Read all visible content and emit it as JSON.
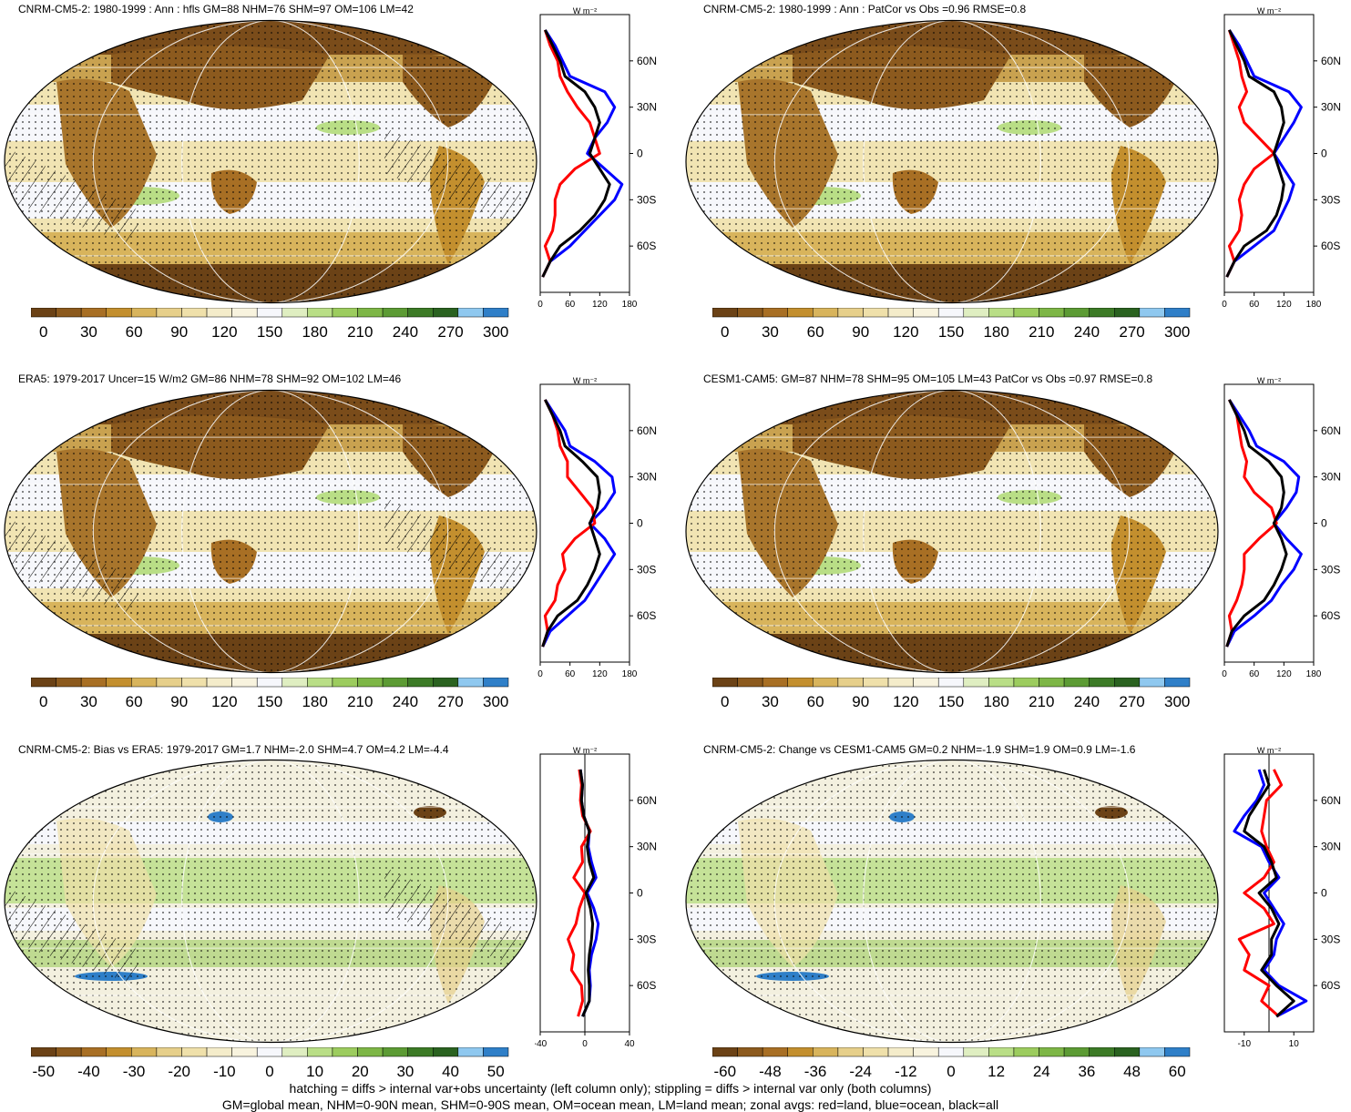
{
  "colors": {
    "abs_scale": [
      "#6b4216",
      "#8c5a1e",
      "#a86f24",
      "#c38f2e",
      "#d8b45c",
      "#e6cf8a",
      "#efe0aa",
      "#f4ecca",
      "#f8f3de",
      "#f6f7fb",
      "#dfeec1",
      "#b9de86",
      "#9ccc5e",
      "#7db646",
      "#5c9b34",
      "#3c7a26",
      "#2a6220",
      "#8fc8ef",
      "#2f7fc8"
    ],
    "diff_scale": [
      "#6b4216",
      "#8c5a1e",
      "#a86f24",
      "#c38f2e",
      "#d8b45c",
      "#e6cf8a",
      "#efe0aa",
      "#f4ecca",
      "#f8f3de",
      "#f6f7fb",
      "#dfeec1",
      "#b9de86",
      "#9ccc5e",
      "#7db646",
      "#5c9b34",
      "#3c7a26",
      "#2a6220",
      "#8fc8ef",
      "#2f7fc8"
    ],
    "land": "#ff0000",
    "ocean": "#0000ff",
    "all": "#000000"
  },
  "panels": [
    {
      "title": "CNRM-CM5-2: 1980-1999 : Ann : hfls GM=88 NHM=76 SHM=97 OM=106 LM=42",
      "map_type": "abs",
      "hatching": true,
      "colorbar_labels": [
        "0",
        "30",
        "60",
        "90",
        "120",
        "150",
        "180",
        "210",
        "240",
        "270",
        "300"
      ],
      "zonal": {
        "unit": "W m⁻²",
        "xlim": [
          0,
          180
        ],
        "xticks": [
          "0",
          "60",
          "120",
          "180"
        ],
        "lat_labels": [
          "60N",
          "30N",
          "0",
          "30S",
          "60S"
        ],
        "zero_line": false,
        "lat": [
          80,
          70,
          60,
          50,
          40,
          30,
          20,
          10,
          0,
          -10,
          -20,
          -30,
          -40,
          -50,
          -60,
          -70,
          -80
        ],
        "land": [
          10,
          20,
          35,
          40,
          55,
          75,
          100,
          110,
          120,
          70,
          40,
          30,
          30,
          25,
          10,
          20,
          5
        ],
        "ocean": [
          10,
          30,
          45,
          60,
          130,
          150,
          135,
          110,
          95,
          130,
          165,
          150,
          120,
          90,
          60,
          20,
          5
        ],
        "all": [
          10,
          25,
          40,
          50,
          90,
          110,
          120,
          110,
          100,
          120,
          140,
          130,
          110,
          80,
          40,
          20,
          5
        ]
      }
    },
    {
      "title": "CNRM-CM5-2: 1980-1999 : Ann : PatCor vs Obs =0.96 RMSE=0.8",
      "map_type": "abs",
      "hatching": false,
      "colorbar_labels": [
        "0",
        "30",
        "60",
        "90",
        "120",
        "150",
        "180",
        "210",
        "240",
        "270",
        "300"
      ],
      "zonal": {
        "unit": "W m⁻²",
        "xlim": [
          0,
          180
        ],
        "xticks": [
          "0",
          "60",
          "120",
          "180"
        ],
        "lat_labels": [
          "60N",
          "30N",
          "0",
          "30S",
          "60S"
        ],
        "zero_line": false,
        "lat": [
          80,
          70,
          60,
          50,
          40,
          30,
          20,
          10,
          0,
          -10,
          -20,
          -30,
          -40,
          -50,
          -60,
          -70,
          -80
        ],
        "land": [
          10,
          20,
          30,
          35,
          45,
          30,
          40,
          70,
          100,
          60,
          40,
          30,
          35,
          30,
          10,
          20,
          5
        ],
        "ocean": [
          10,
          30,
          45,
          60,
          130,
          155,
          140,
          120,
          100,
          120,
          140,
          130,
          115,
          100,
          60,
          20,
          5
        ],
        "all": [
          10,
          25,
          40,
          50,
          100,
          115,
          120,
          110,
          100,
          110,
          120,
          115,
          105,
          85,
          40,
          20,
          5
        ]
      }
    },
    {
      "title": "ERA5: 1979-2017 Uncer=15 W/m2 GM=86 NHM=78 SHM=92 OM=102 LM=46",
      "map_type": "abs",
      "hatching": true,
      "colorbar_labels": [
        "0",
        "30",
        "60",
        "90",
        "120",
        "150",
        "180",
        "210",
        "240",
        "270",
        "300"
      ],
      "zonal": {
        "unit": "W m⁻²",
        "xlim": [
          0,
          180
        ],
        "xticks": [
          "0",
          "60",
          "120",
          "180"
        ],
        "lat_labels": [
          "60N",
          "30N",
          "0",
          "30S",
          "60S"
        ],
        "zero_line": false,
        "lat": [
          80,
          70,
          60,
          50,
          40,
          30,
          20,
          10,
          0,
          -10,
          -20,
          -30,
          -40,
          -50,
          -60,
          -70,
          -80
        ],
        "land": [
          10,
          25,
          35,
          40,
          55,
          55,
          80,
          105,
          110,
          70,
          45,
          50,
          35,
          30,
          10,
          15,
          5
        ],
        "ocean": [
          10,
          30,
          50,
          60,
          110,
          145,
          150,
          130,
          100,
          130,
          150,
          130,
          110,
          90,
          55,
          20,
          5
        ],
        "all": [
          10,
          25,
          40,
          50,
          85,
          115,
          120,
          115,
          100,
          110,
          120,
          110,
          95,
          75,
          35,
          15,
          5
        ]
      }
    },
    {
      "title": "CESM1-CAM5: GM=87 NHM=78 SHM=95 OM=105 LM=43 PatCor vs Obs =0.97 RMSE=0.8",
      "map_type": "abs",
      "hatching": false,
      "colorbar_labels": [
        "0",
        "30",
        "60",
        "90",
        "120",
        "150",
        "180",
        "210",
        "240",
        "270",
        "300"
      ],
      "zonal": {
        "unit": "W m⁻²",
        "xlim": [
          0,
          180
        ],
        "xticks": [
          "0",
          "60",
          "120",
          "180"
        ],
        "lat_labels": [
          "60N",
          "30N",
          "0",
          "30S",
          "60S"
        ],
        "zero_line": false,
        "lat": [
          80,
          70,
          60,
          50,
          40,
          30,
          20,
          10,
          0,
          -10,
          -20,
          -30,
          -40,
          -50,
          -60,
          -70,
          -80
        ],
        "land": [
          10,
          25,
          30,
          35,
          45,
          40,
          60,
          95,
          105,
          70,
          40,
          40,
          35,
          25,
          10,
          15,
          5
        ],
        "ocean": [
          10,
          30,
          50,
          65,
          120,
          150,
          145,
          125,
          100,
          125,
          155,
          140,
          115,
          95,
          60,
          20,
          5
        ],
        "all": [
          10,
          25,
          40,
          50,
          90,
          115,
          120,
          115,
          100,
          115,
          125,
          115,
          100,
          80,
          40,
          15,
          5
        ]
      }
    },
    {
      "title": "CNRM-CM5-2: Bias vs ERA5: 1979-2017 GM=1.7 NHM=-2.0 SHM=4.7 OM=4.2 LM=-4.4",
      "map_type": "diff",
      "hatching": true,
      "colorbar_labels": [
        "-50",
        "-40",
        "-30",
        "-20",
        "-10",
        "0",
        "10",
        "20",
        "30",
        "40",
        "50"
      ],
      "zonal": {
        "unit": "W m⁻²",
        "xlim": [
          -40,
          40
        ],
        "xticks": [
          "-40",
          "0",
          "40"
        ],
        "lat_labels": [
          "60N",
          "30N",
          "0",
          "30S",
          "60S"
        ],
        "zero_line": true,
        "lat": [
          80,
          70,
          60,
          50,
          40,
          30,
          20,
          10,
          0,
          -10,
          -20,
          -30,
          -40,
          -50,
          -60,
          -70,
          -80
        ],
        "land": [
          -5,
          -3,
          -4,
          -2,
          5,
          -3,
          -2,
          -10,
          0,
          -5,
          -8,
          -15,
          -10,
          -12,
          -3,
          -2,
          -6
        ],
        "ocean": [
          -4,
          -2,
          -3,
          -1,
          4,
          3,
          6,
          10,
          2,
          8,
          12,
          10,
          6,
          4,
          5,
          4,
          -2
        ],
        "all": [
          -4,
          -2,
          -3,
          -1,
          4,
          2,
          4,
          8,
          1,
          5,
          7,
          6,
          4,
          3,
          4,
          4,
          -2
        ]
      }
    },
    {
      "title": "CNRM-CM5-2: Change vs CESM1-CAM5 GM=0.2 NHM=-1.9 SHM=1.9 OM=0.9 LM=-1.6",
      "map_type": "diff",
      "hatching": false,
      "colorbar_labels": [
        "-60",
        "-48",
        "-36",
        "-24",
        "-12",
        "0",
        "12",
        "24",
        "36",
        "48",
        "60"
      ],
      "zonal": {
        "unit": "W m⁻²",
        "xlim": [
          -18,
          18
        ],
        "xticks": [
          "-10",
          "10"
        ],
        "lat_labels": [
          "60N",
          "30N",
          "0",
          "30S",
          "60S"
        ],
        "zero_line": true,
        "lat": [
          80,
          70,
          60,
          50,
          40,
          30,
          20,
          10,
          0,
          -10,
          -20,
          -30,
          -40,
          -50,
          -60,
          -70,
          -80
        ],
        "land": [
          2,
          5,
          -1,
          -2,
          -3,
          -1,
          2,
          -2,
          -10,
          -2,
          2,
          -12,
          -8,
          -10,
          0,
          -3,
          4
        ],
        "ocean": [
          -4,
          -2,
          -5,
          -10,
          -14,
          -3,
          0,
          4,
          -2,
          2,
          6,
          3,
          2,
          -2,
          4,
          15,
          3
        ],
        "all": [
          -2,
          0,
          -4,
          -8,
          -10,
          -2,
          1,
          3,
          -4,
          1,
          4,
          1,
          1,
          -3,
          3,
          10,
          3
        ]
      }
    }
  ],
  "footer": {
    "line1": "hatching = diffs > internal var+obs uncertainty (left column only); stippling = diffs > internal var only (both columns)",
    "line2": "GM=global mean, NHM=0-90N mean, SHM=0-90S mean, OM=ocean mean, LM=land mean; zonal avgs: red=land, blue=ocean, black=all"
  }
}
